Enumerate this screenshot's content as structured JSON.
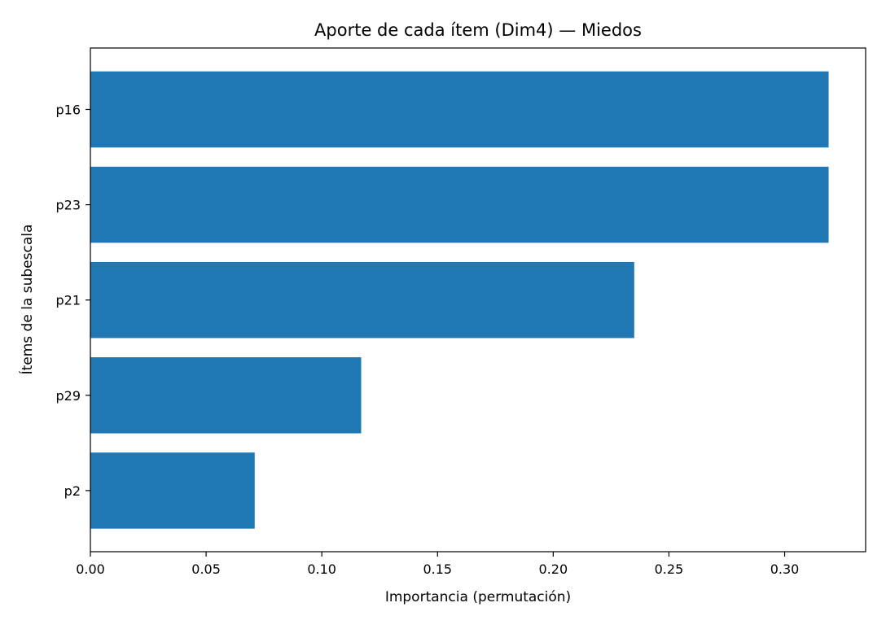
{
  "chart_data": {
    "type": "bar",
    "orientation": "horizontal",
    "title": "Aporte de cada ítem (Dim4) — Miedos",
    "xlabel": "Importancia (permutación)",
    "ylabel": "Ítems de la subescala",
    "categories": [
      "p16",
      "p23",
      "p21",
      "p29",
      "p2"
    ],
    "values": [
      0.319,
      0.319,
      0.235,
      0.117,
      0.071
    ],
    "xlim": [
      0,
      0.335
    ],
    "xticks": [
      0.0,
      0.05,
      0.1,
      0.15,
      0.2,
      0.25,
      0.3
    ],
    "xtick_labels": [
      "0.00",
      "0.05",
      "0.10",
      "0.15",
      "0.20",
      "0.25",
      "0.30"
    ],
    "grid": false,
    "bar_color": "#1f77b4"
  }
}
